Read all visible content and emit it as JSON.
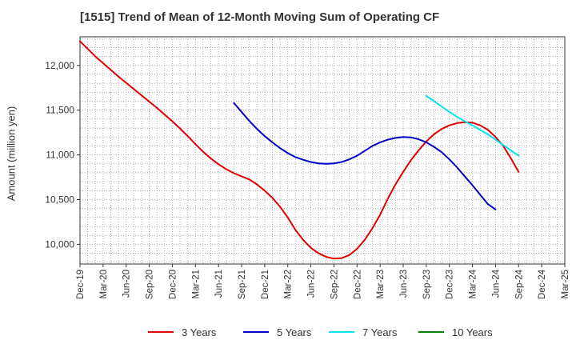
{
  "chart_data": {
    "type": "line",
    "title": "[1515]  Trend of Mean of 12-Month Moving Sum of Operating CF",
    "xlabel": "",
    "ylabel": "Amount (million yen)",
    "ylim": [
      9780,
      12320
    ],
    "y_ticks": [
      10000,
      10500,
      11000,
      11500,
      12000
    ],
    "y_tick_labels": [
      "10,000",
      "10,500",
      "11,000",
      "11,500",
      "12,000"
    ],
    "x_ticks": [
      "Dec-19",
      "Mar-20",
      "Jun-20",
      "Sep-20",
      "Dec-20",
      "Mar-21",
      "Jun-21",
      "Sep-21",
      "Dec-21",
      "Mar-22",
      "Jun-22",
      "Sep-22",
      "Dec-22",
      "Mar-23",
      "Jun-23",
      "Sep-23",
      "Dec-23",
      "Mar-24",
      "Jun-24",
      "Sep-24",
      "Dec-24",
      "Mar-25"
    ],
    "grid": true,
    "legend_position": "bottom",
    "series": [
      {
        "name": "3 Years",
        "color": "#e00000",
        "points": [
          [
            0,
            12270
          ],
          [
            1,
            12185
          ],
          [
            2,
            12100
          ],
          [
            3,
            12025
          ],
          [
            4,
            11950
          ],
          [
            5,
            11875
          ],
          [
            6,
            11805
          ],
          [
            7,
            11735
          ],
          [
            8,
            11665
          ],
          [
            9,
            11595
          ],
          [
            10,
            11525
          ],
          [
            11,
            11450
          ],
          [
            12,
            11375
          ],
          [
            13,
            11295
          ],
          [
            14,
            11210
          ],
          [
            15,
            11120
          ],
          [
            16,
            11035
          ],
          [
            17,
            10960
          ],
          [
            18,
            10895
          ],
          [
            19,
            10840
          ],
          [
            20,
            10795
          ],
          [
            21,
            10760
          ],
          [
            22,
            10725
          ],
          [
            23,
            10670
          ],
          [
            24,
            10600
          ],
          [
            25,
            10520
          ],
          [
            26,
            10420
          ],
          [
            27,
            10300
          ],
          [
            28,
            10160
          ],
          [
            29,
            10050
          ],
          [
            30,
            9960
          ],
          [
            31,
            9900
          ],
          [
            32,
            9860
          ],
          [
            33,
            9840
          ],
          [
            34,
            9845
          ],
          [
            35,
            9880
          ],
          [
            36,
            9950
          ],
          [
            37,
            10050
          ],
          [
            38,
            10180
          ],
          [
            39,
            10330
          ],
          [
            40,
            10510
          ],
          [
            41,
            10670
          ],
          [
            42,
            10810
          ],
          [
            43,
            10940
          ],
          [
            44,
            11050
          ],
          [
            45,
            11150
          ],
          [
            46,
            11230
          ],
          [
            47,
            11290
          ],
          [
            48,
            11330
          ],
          [
            49,
            11355
          ],
          [
            50,
            11365
          ],
          [
            51,
            11360
          ],
          [
            52,
            11330
          ],
          [
            53,
            11280
          ],
          [
            54,
            11200
          ],
          [
            55,
            11100
          ],
          [
            56,
            10960
          ],
          [
            57,
            10810
          ]
        ]
      },
      {
        "name": "5 Years",
        "color": "#0000c8",
        "points": [
          [
            20,
            11580
          ],
          [
            21,
            11480
          ],
          [
            22,
            11380
          ],
          [
            23,
            11290
          ],
          [
            24,
            11210
          ],
          [
            25,
            11140
          ],
          [
            26,
            11075
          ],
          [
            27,
            11020
          ],
          [
            28,
            10975
          ],
          [
            29,
            10945
          ],
          [
            30,
            10920
          ],
          [
            31,
            10905
          ],
          [
            32,
            10900
          ],
          [
            33,
            10905
          ],
          [
            34,
            10920
          ],
          [
            35,
            10950
          ],
          [
            36,
            10990
          ],
          [
            37,
            11045
          ],
          [
            38,
            11100
          ],
          [
            39,
            11140
          ],
          [
            40,
            11170
          ],
          [
            41,
            11190
          ],
          [
            42,
            11200
          ],
          [
            43,
            11195
          ],
          [
            44,
            11175
          ],
          [
            45,
            11140
          ],
          [
            46,
            11090
          ],
          [
            47,
            11030
          ],
          [
            48,
            10950
          ],
          [
            49,
            10860
          ],
          [
            50,
            10760
          ],
          [
            51,
            10660
          ],
          [
            52,
            10555
          ],
          [
            53,
            10450
          ],
          [
            54,
            10390
          ]
        ]
      },
      {
        "name": "7 Years",
        "color": "#00e5ee",
        "points": [
          [
            45,
            11660
          ],
          [
            46,
            11600
          ],
          [
            47,
            11540
          ],
          [
            48,
            11480
          ],
          [
            49,
            11425
          ],
          [
            50,
            11375
          ],
          [
            51,
            11330
          ],
          [
            52,
            11280
          ],
          [
            53,
            11230
          ],
          [
            54,
            11170
          ],
          [
            55,
            11110
          ],
          [
            56,
            11050
          ],
          [
            57,
            10990
          ]
        ]
      },
      {
        "name": "10 Years",
        "color": "#008000",
        "points": []
      }
    ]
  }
}
